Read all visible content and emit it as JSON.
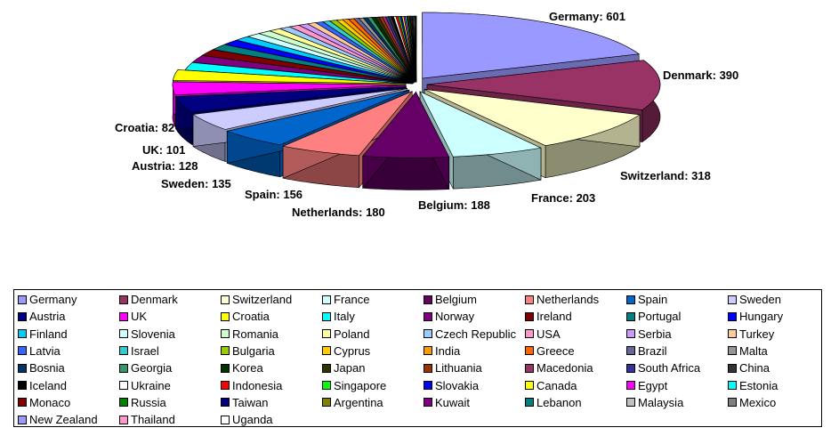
{
  "chart_data": {
    "type": "pie",
    "style": "3d-exploded",
    "title": "",
    "legend_position": "bottom",
    "categories": [
      "Germany",
      "Denmark",
      "Switzerland",
      "France",
      "Belgium",
      "Netherlands",
      "Spain",
      "Sweden",
      "Austria",
      "UK",
      "Croatia",
      "Italy",
      "Norway",
      "Ireland",
      "Portugal",
      "Hungary",
      "Finland",
      "Slovenia",
      "Romania",
      "Poland",
      "Czech Republic",
      "USA",
      "Serbia",
      "Turkey",
      "Latvia",
      "Israel",
      "Bulgaria",
      "Cyprus",
      "India",
      "Greece",
      "Brazil",
      "Malta",
      "Bosnia",
      "Georgia",
      "Korea",
      "Japan",
      "Lithuania",
      "Macedonia",
      "South Africa",
      "China",
      "Iceland",
      "Ukraine",
      "Indonesia",
      "Singapore",
      "Slovakia",
      "Canada",
      "Egypt",
      "Estonia",
      "Monaco",
      "Russia",
      "Taiwan",
      "Argentina",
      "Kuwait",
      "Lebanon",
      "Malaysia",
      "Mexico",
      "New Zealand",
      "Thailand",
      "Uganda"
    ],
    "values": [
      601,
      390,
      318,
      203,
      188,
      180,
      156,
      135,
      128,
      101,
      82,
      60,
      55,
      50,
      45,
      40,
      36,
      33,
      30,
      27,
      25,
      23,
      21,
      19,
      17,
      16,
      15,
      14,
      13,
      12,
      11,
      10,
      9,
      9,
      8,
      8,
      7,
      7,
      6,
      6,
      5,
      5,
      5,
      4,
      4,
      4,
      3,
      3,
      3,
      3,
      2,
      2,
      2,
      2,
      2,
      2,
      1,
      1,
      1
    ],
    "labels": [
      {
        "text": "Germany: 601"
      },
      {
        "text": "Denmark: 390"
      },
      {
        "text": "Switzerland: 318"
      },
      {
        "text": "France: 203"
      },
      {
        "text": "Belgium: 188"
      },
      {
        "text": "Netherlands: 180"
      },
      {
        "text": "Spain: 156"
      },
      {
        "text": "Sweden: 135"
      },
      {
        "text": "Austria: 128"
      },
      {
        "text": "UK: 101"
      },
      {
        "text": "Croatia: 82"
      }
    ],
    "colors": [
      "#9999FF",
      "#993366",
      "#FFFFCC",
      "#CCFFFF",
      "#660066",
      "#FF8080",
      "#0066CC",
      "#CCCCFF",
      "#000080",
      "#FF00FF",
      "#FFFF00",
      "#00FFFF",
      "#800080",
      "#800000",
      "#008080",
      "#0000FF",
      "#00CCFF",
      "#CCFFFF",
      "#CCFFCC",
      "#FFFF99",
      "#99CCFF",
      "#FF99CC",
      "#CC99FF",
      "#FFCC99",
      "#3366FF",
      "#33CCCC",
      "#99CC00",
      "#FFCC00",
      "#FF9900",
      "#FF6600",
      "#666699",
      "#969696",
      "#003366",
      "#339966",
      "#003300",
      "#333300",
      "#993300",
      "#993366",
      "#333399",
      "#333333",
      "#000000",
      "#FFFFFF",
      "#FF0000",
      "#00FF00",
      "#0000FF",
      "#FFFF00",
      "#FF00FF",
      "#00FFFF",
      "#800000",
      "#008000",
      "#000080",
      "#808000",
      "#800080",
      "#008080",
      "#C0C0C0",
      "#808080",
      "#9999FF",
      "#FF99CC",
      "#FFFFFF"
    ]
  }
}
